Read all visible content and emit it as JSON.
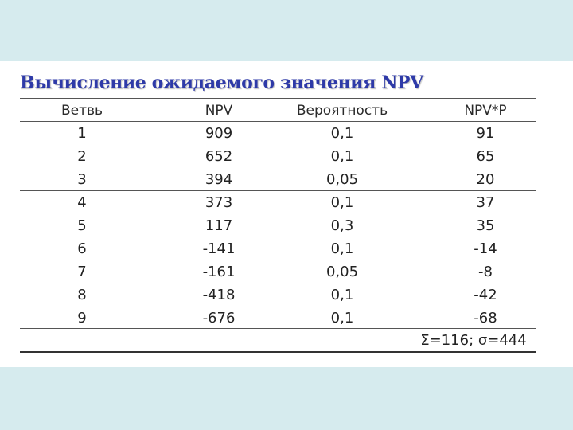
{
  "title": "Вычисление ожидаемого значения NPV",
  "table": {
    "headers": [
      "Ветвь",
      "NPV",
      "Вероятность",
      "NPV*P"
    ],
    "rows": [
      [
        "1",
        "909",
        "0,1",
        "91"
      ],
      [
        "2",
        "652",
        "0,1",
        "65"
      ],
      [
        "3",
        "394",
        "0,05",
        "20"
      ],
      [
        "4",
        "373",
        "0,1",
        "37"
      ],
      [
        "5",
        "117",
        "0,3",
        "35"
      ],
      [
        "6",
        "-141",
        "0,1",
        "-14"
      ],
      [
        "7",
        "-161",
        "0,05",
        "-8"
      ],
      [
        "8",
        "-418",
        "0,1",
        "-42"
      ],
      [
        "9",
        "-676",
        "0,1",
        "-68"
      ]
    ],
    "total": "Σ=116; σ=444"
  }
}
